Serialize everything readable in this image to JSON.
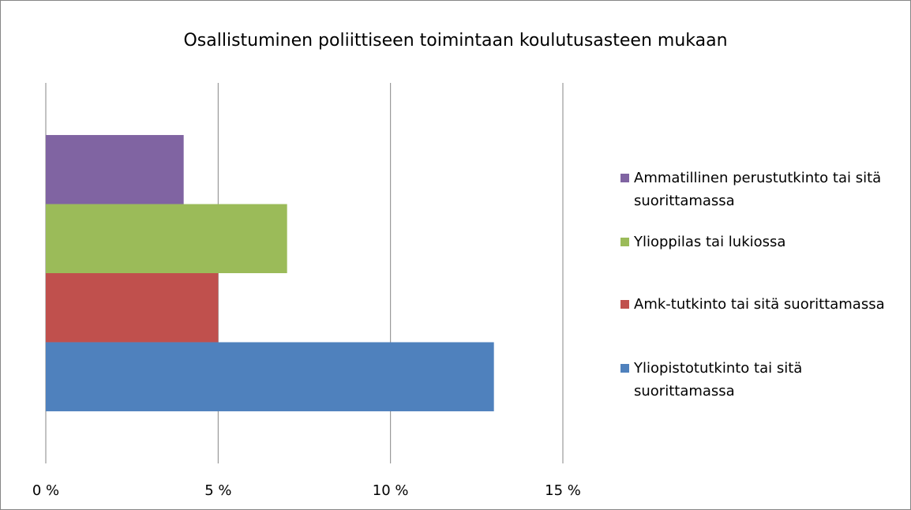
{
  "chart_data": {
    "type": "bar",
    "orientation": "horizontal",
    "title": "Osallistuminen poliittiseen toimintaan koulutusasteen mukaan",
    "categories": [
      null
    ],
    "series": [
      {
        "name": "Ammatillinen perustutkinto tai sitä suorittamassa",
        "color": "#8064a2",
        "values": [
          4
        ]
      },
      {
        "name": "Ylioppilas tai lukiossa",
        "color": "#9bbb59",
        "values": [
          7
        ]
      },
      {
        "name": "Amk-tutkinto tai sitä suorittamassa",
        "color": "#c0504d",
        "values": [
          5
        ]
      },
      {
        "name": "Yliopistotutkinto tai sitä suorittamassa",
        "color": "#4f81bd",
        "values": [
          13
        ]
      }
    ],
    "xlim": [
      0,
      15
    ],
    "xticks": [
      {
        "value": 0,
        "label": "0 %"
      },
      {
        "value": 5,
        "label": "5 %"
      },
      {
        "value": 10,
        "label": "10 %"
      },
      {
        "value": 15,
        "label": "15 %"
      }
    ],
    "grid": true,
    "legend": "right"
  }
}
